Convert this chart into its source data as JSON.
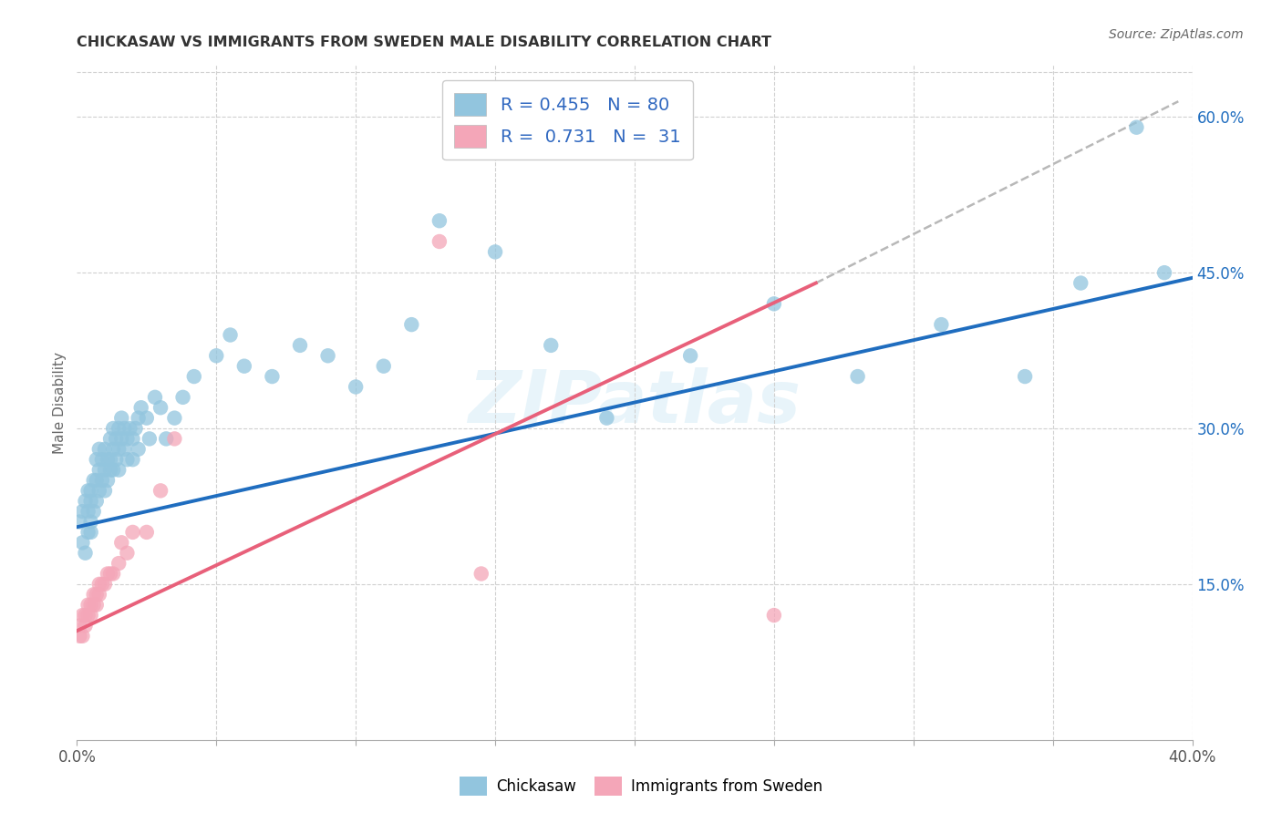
{
  "title": "CHICKASAW VS IMMIGRANTS FROM SWEDEN MALE DISABILITY CORRELATION CHART",
  "source": "Source: ZipAtlas.com",
  "ylabel": "Male Disability",
  "xlim": [
    0.0,
    0.4
  ],
  "ylim": [
    0.0,
    0.65
  ],
  "x_ticks": [
    0.0,
    0.05,
    0.1,
    0.15,
    0.2,
    0.25,
    0.3,
    0.35,
    0.4
  ],
  "x_tick_labels": [
    "0.0%",
    "",
    "",
    "",
    "",
    "",
    "",
    "",
    "40.0%"
  ],
  "y_ticks_right": [
    0.15,
    0.3,
    0.45,
    0.6
  ],
  "y_tick_labels_right": [
    "15.0%",
    "30.0%",
    "45.0%",
    "60.0%"
  ],
  "watermark": "ZIPatlas",
  "legend_R1": "R = 0.455   N = 80",
  "legend_R2": "R =  0.731   N =  31",
  "blue_color": "#92c5de",
  "pink_color": "#f4a6b8",
  "line_blue": "#1f6dbf",
  "line_pink": "#e8607a",
  "line_gray": "#b8b8b8",
  "title_color": "#333333",
  "legend_text_color": "#3068c0",
  "chickasaw_x": [
    0.001,
    0.002,
    0.002,
    0.003,
    0.003,
    0.004,
    0.004,
    0.004,
    0.005,
    0.005,
    0.005,
    0.005,
    0.006,
    0.006,
    0.007,
    0.007,
    0.007,
    0.008,
    0.008,
    0.008,
    0.009,
    0.009,
    0.01,
    0.01,
    0.01,
    0.011,
    0.011,
    0.012,
    0.012,
    0.012,
    0.013,
    0.013,
    0.013,
    0.014,
    0.014,
    0.015,
    0.015,
    0.015,
    0.016,
    0.016,
    0.017,
    0.017,
    0.018,
    0.018,
    0.019,
    0.02,
    0.02,
    0.021,
    0.022,
    0.022,
    0.023,
    0.025,
    0.026,
    0.028,
    0.03,
    0.032,
    0.035,
    0.038,
    0.042,
    0.05,
    0.055,
    0.06,
    0.07,
    0.08,
    0.09,
    0.1,
    0.11,
    0.12,
    0.13,
    0.15,
    0.17,
    0.19,
    0.22,
    0.25,
    0.28,
    0.31,
    0.34,
    0.36,
    0.38,
    0.39
  ],
  "chickasaw_y": [
    0.21,
    0.22,
    0.19,
    0.23,
    0.18,
    0.24,
    0.2,
    0.22,
    0.23,
    0.21,
    0.24,
    0.2,
    0.25,
    0.22,
    0.27,
    0.25,
    0.23,
    0.26,
    0.28,
    0.24,
    0.27,
    0.25,
    0.28,
    0.26,
    0.24,
    0.27,
    0.25,
    0.29,
    0.27,
    0.26,
    0.28,
    0.3,
    0.26,
    0.29,
    0.27,
    0.3,
    0.28,
    0.26,
    0.29,
    0.31,
    0.28,
    0.3,
    0.29,
    0.27,
    0.3,
    0.29,
    0.27,
    0.3,
    0.31,
    0.28,
    0.32,
    0.31,
    0.29,
    0.33,
    0.32,
    0.29,
    0.31,
    0.33,
    0.35,
    0.37,
    0.39,
    0.36,
    0.35,
    0.38,
    0.37,
    0.34,
    0.36,
    0.4,
    0.5,
    0.47,
    0.38,
    0.31,
    0.37,
    0.42,
    0.35,
    0.4,
    0.35,
    0.44,
    0.59,
    0.45
  ],
  "sweden_x": [
    0.001,
    0.001,
    0.002,
    0.002,
    0.003,
    0.003,
    0.004,
    0.004,
    0.005,
    0.005,
    0.006,
    0.006,
    0.007,
    0.007,
    0.008,
    0.008,
    0.009,
    0.01,
    0.011,
    0.012,
    0.013,
    0.015,
    0.016,
    0.018,
    0.02,
    0.025,
    0.03,
    0.035,
    0.13,
    0.145,
    0.25
  ],
  "sweden_y": [
    0.1,
    0.11,
    0.12,
    0.1,
    0.11,
    0.12,
    0.12,
    0.13,
    0.12,
    0.13,
    0.13,
    0.14,
    0.14,
    0.13,
    0.15,
    0.14,
    0.15,
    0.15,
    0.16,
    0.16,
    0.16,
    0.17,
    0.19,
    0.18,
    0.2,
    0.2,
    0.24,
    0.29,
    0.48,
    0.16,
    0.12
  ],
  "chickasaw_line_x": [
    0.0,
    0.4
  ],
  "chickasaw_line_y": [
    0.205,
    0.445
  ],
  "sweden_line_x": [
    0.0,
    0.265
  ],
  "sweden_line_y": [
    0.105,
    0.44
  ],
  "gray_line_x": [
    0.265,
    0.395
  ],
  "gray_line_y": [
    0.44,
    0.615
  ]
}
